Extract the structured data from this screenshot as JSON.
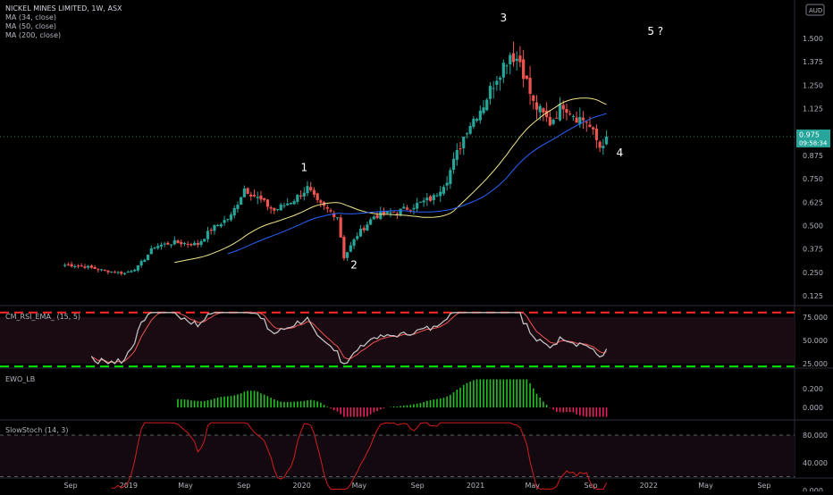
{
  "header": {
    "symbol_line": "NICKEL MINES LIMITED, 1W, ASX",
    "indicators": [
      "MA (34, close)",
      "MA (50, close)",
      "MA (200, close)"
    ],
    "currency": "AUD"
  },
  "price_tag": {
    "value": "0.975",
    "time": "09:58:34"
  },
  "panes": {
    "rsi": {
      "label": "CM_RSI_EMA_ (15, 5)",
      "ticks": [
        "75.000",
        "50.000",
        "25.000"
      ]
    },
    "ewo": {
      "label": "EWO_LB",
      "ticks": [
        "0.200",
        "0.000"
      ]
    },
    "stoch": {
      "label": "SlowStoch (14, 3)",
      "ticks": [
        "80.000",
        "40.000",
        "0.000"
      ]
    }
  },
  "colors": {
    "up": "#26a69a",
    "down": "#ef5350",
    "ma34": "#f0e68c",
    "ma50": "#2962ff",
    "ewo_up": "#22c322",
    "ewo_down": "#e91e63",
    "rsi_line": "#c0c0c0",
    "rsi_upper": "#ff2a2a",
    "rsi_lower": "#00e600",
    "stoch": "#d41c1c"
  },
  "chart_data": {
    "type": "candlestick",
    "title": "NICKEL MINES LIMITED, 1W, ASX",
    "price_axis": {
      "ticks": [
        "1.500",
        "1.375",
        "1.250",
        "1.125",
        "0.875",
        "0.750",
        "0.625",
        "0.500",
        "0.375",
        "0.250",
        "0.125"
      ]
    },
    "time_axis": {
      "ticks": [
        "Sep",
        "2019",
        "May",
        "Sep",
        "2020",
        "May",
        "Sep",
        "2021",
        "May",
        "Sep",
        "2022",
        "May",
        "Sep"
      ]
    },
    "anchors": [
      [
        "2018-08-20",
        0.29
      ],
      [
        "2018-09-24",
        0.285
      ],
      [
        "2018-11-05",
        0.262
      ],
      [
        "2018-12-24",
        0.245
      ],
      [
        "2019-01-21",
        0.28
      ],
      [
        "2019-02-25",
        0.39
      ],
      [
        "2019-04-08",
        0.41
      ],
      [
        "2019-05-27",
        0.4
      ],
      [
        "2019-06-24",
        0.48
      ],
      [
        "2019-08-05",
        0.55
      ],
      [
        "2019-09-02",
        0.7
      ],
      [
        "2019-09-23",
        0.66
      ],
      [
        "2019-11-04",
        0.58
      ],
      [
        "2019-12-16",
        0.64
      ],
      [
        "2020-01-13",
        0.7
      ],
      [
        "2020-02-03",
        0.62
      ],
      [
        "2020-03-16",
        0.55
      ],
      [
        "2020-03-30",
        0.33
      ],
      [
        "2020-04-27",
        0.45
      ],
      [
        "2020-06-01",
        0.55
      ],
      [
        "2020-07-27",
        0.58
      ],
      [
        "2020-09-07",
        0.62
      ],
      [
        "2020-10-05",
        0.65
      ],
      [
        "2020-11-02",
        0.75
      ],
      [
        "2020-12-14",
        1.02
      ],
      [
        "2021-01-18",
        1.15
      ],
      [
        "2021-02-15",
        1.3
      ],
      [
        "2021-03-15",
        1.42
      ],
      [
        "2021-04-05",
        1.38
      ],
      [
        "2021-05-03",
        1.15
      ],
      [
        "2021-06-07",
        1.05
      ],
      [
        "2021-07-05",
        1.15
      ],
      [
        "2021-08-02",
        1.08
      ],
      [
        "2021-08-23",
        1.06
      ],
      [
        "2021-09-20",
        0.92
      ],
      [
        "2021-10-04",
        0.975
      ]
    ],
    "wave_labels": [
      "1",
      "2",
      "3",
      "4",
      "5 ?"
    ],
    "ma_series": [
      "MA (34, close)",
      "MA (50, close)"
    ]
  }
}
